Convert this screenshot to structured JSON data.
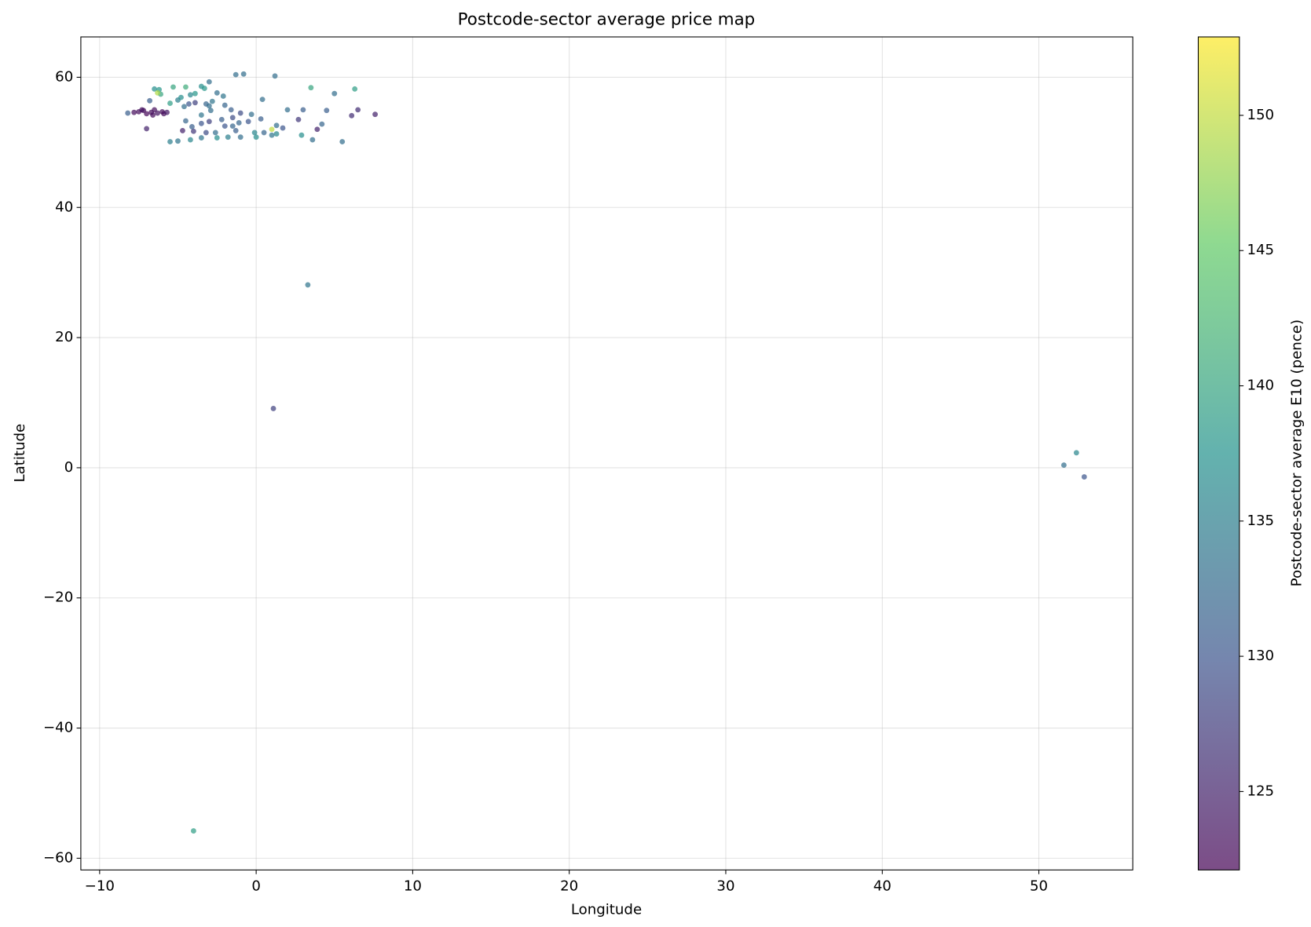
{
  "chart_data": {
    "type": "scatter",
    "title": "Postcode-sector average price map",
    "xlabel": "Longitude",
    "ylabel": "Latitude",
    "colorbar_label": "Postcode-sector average E10 (pence)",
    "colormap": "viridis",
    "alpha": 0.7,
    "grid": true,
    "xlim": [
      -11.2,
      56.0
    ],
    "ylim": [
      -61.8,
      66.2
    ],
    "clim": [
      122.1,
      152.9
    ],
    "xticks": [
      {
        "value": -10,
        "label": "−10"
      },
      0,
      10,
      20,
      30,
      40,
      50
    ],
    "yticks": [
      {
        "value": -60,
        "label": "−60"
      },
      {
        "value": -40,
        "label": "−40"
      },
      {
        "value": -20,
        "label": "−20"
      },
      0,
      20,
      40,
      60
    ],
    "cticks": [
      125,
      130,
      135,
      140,
      145,
      150
    ],
    "x": [
      -8.2,
      -7.8,
      -7.5,
      -7.2,
      -7.0,
      -6.7,
      -6.5,
      -6.3,
      -6.0,
      -5.9,
      -5.7,
      -6.6,
      -7.3,
      -6.5,
      -6.2,
      -5.3,
      -4.5,
      -3.5,
      -3.0,
      -3.3,
      -2.5,
      -2.1,
      -3.9,
      -4.2,
      -5.0,
      -4.3,
      -3.2,
      -2.8,
      -3.9,
      -4.6,
      -5.5,
      -4.8,
      -3.0,
      -2.0,
      -6.8,
      -6.1,
      -5.5,
      -5.0,
      -4.2,
      -3.5,
      -2.5,
      -1.8,
      -1.0,
      0.0,
      1.0,
      1.3,
      0.5,
      -0.1,
      -1.3,
      -2.6,
      -3.2,
      -4.0,
      -4.7,
      -4.1,
      -3.5,
      -3.0,
      -2.2,
      -1.5,
      -1.1,
      -0.5,
      0.3,
      1.3,
      1.7,
      -1.5,
      -2.0,
      -1.0,
      -1.6,
      -2.9,
      -3.5,
      -4.5,
      -0.3,
      1.0,
      2.0,
      2.7,
      3.0,
      3.9,
      4.2,
      4.5,
      5.0,
      6.1,
      6.5,
      7.6,
      2.9,
      3.6,
      0.4,
      -1.3,
      -0.8,
      1.2,
      3.5,
      6.3,
      5.5,
      -6.3,
      -7.0,
      3.3,
      1.1,
      51.6,
      52.4,
      52.9,
      -4.0
    ],
    "y": [
      54.5,
      54.6,
      54.7,
      54.9,
      54.4,
      54.6,
      55.0,
      54.5,
      54.7,
      54.4,
      54.6,
      54.2,
      55.0,
      58.2,
      58.1,
      58.5,
      58.5,
      58.6,
      59.3,
      58.3,
      57.6,
      57.1,
      57.5,
      57.3,
      56.5,
      55.9,
      55.9,
      56.3,
      56.1,
      55.5,
      56.0,
      56.9,
      55.6,
      55.7,
      56.4,
      57.4,
      50.1,
      50.2,
      50.4,
      50.7,
      50.7,
      50.8,
      50.8,
      50.8,
      51.1,
      51.3,
      51.5,
      51.5,
      51.8,
      51.5,
      51.5,
      51.7,
      51.8,
      52.4,
      52.9,
      53.2,
      53.5,
      53.8,
      53.0,
      53.2,
      53.6,
      52.6,
      52.2,
      52.5,
      52.5,
      54.5,
      55.0,
      54.9,
      54.2,
      53.3,
      54.3,
      52.0,
      55.0,
      53.5,
      55.0,
      52.0,
      52.8,
      54.9,
      57.5,
      54.1,
      55.0,
      54.3,
      51.1,
      50.4,
      56.6,
      60.4,
      60.5,
      60.2,
      58.4,
      58.2,
      50.1,
      57.6,
      52.1,
      28.1,
      9.1,
      0.4,
      2.3,
      -1.4,
      -55.8
    ],
    "c": [
      131,
      123,
      123,
      123,
      122.5,
      123,
      123,
      123.5,
      123,
      123,
      124,
      123,
      123.5,
      137,
      138,
      140,
      141,
      137,
      133,
      138,
      133,
      134,
      138,
      136,
      135,
      130,
      132,
      134,
      128,
      133,
      139,
      137,
      133,
      132,
      131,
      140,
      135,
      134,
      136,
      134,
      137,
      135,
      133,
      137,
      134,
      136,
      132,
      136,
      131,
      133,
      129,
      127,
      125,
      131,
      130,
      128,
      131,
      129,
      132,
      130,
      131,
      133,
      130,
      132,
      130,
      129,
      131,
      133,
      134,
      132,
      133,
      150,
      133,
      127,
      131,
      125,
      132,
      131,
      133,
      126,
      126,
      125,
      137,
      133,
      133,
      133,
      133,
      133,
      140,
      139,
      133,
      149,
      125,
      134,
      128,
      133,
      136,
      130,
      139
    ]
  }
}
